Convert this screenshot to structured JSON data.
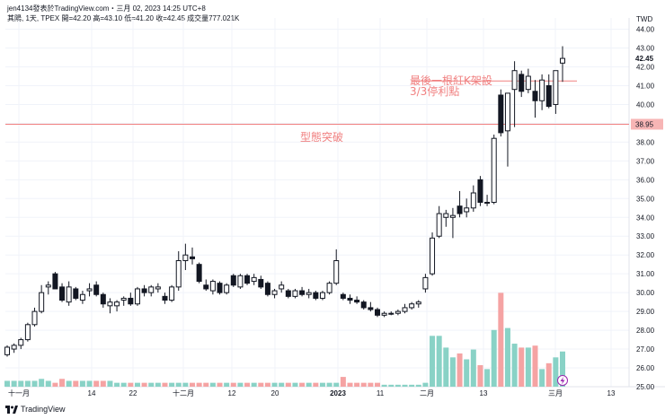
{
  "header": {
    "published": "jen4134發表於TradingView.com・三月 02, 2023 14:25 UTC+8",
    "ohlc": "其陽, 1天, TPEX  開=42.20  高=43.10  低=41.20  收=42.45  成交量777.021K"
  },
  "footer": {
    "brand": "TradingView",
    "logo_icon": "tradingview-logo-icon"
  },
  "alert_icon": "lightning-icon",
  "colors": {
    "up": "#ffffff",
    "down": "#131722",
    "vol_up": "#89d2c6",
    "vol_down": "#f5a3a3",
    "line": "#f08080",
    "grid": "#f0f3fa"
  },
  "chart_data": {
    "type": "candlestick",
    "currency": "TWD",
    "y_range": [
      25.0,
      44.6
    ],
    "y_ticks": [
      "44.00",
      "43.00",
      "42.00",
      "41.00",
      "40.00",
      "39.00",
      "38.00",
      "37.00",
      "36.00",
      "35.00",
      "34.00",
      "33.00",
      "32.00",
      "31.00",
      "30.00",
      "29.00",
      "28.00",
      "27.00",
      "26.00",
      "25.00"
    ],
    "x_ticks": [
      "十一月",
      "14",
      "22",
      "十二月",
      "12",
      "20",
      "2023",
      "11",
      "二月",
      "13",
      "三月",
      "13"
    ],
    "last_price": "42.45",
    "level_price": "38.95",
    "horizontal_lines": [
      {
        "price": 38.95,
        "label": "型態突破"
      },
      {
        "price": 41.25,
        "label": "最後一根紅K架設\n3/3停利點"
      }
    ],
    "annotations": [
      "最後一根紅K架設",
      "3/3停利點",
      "型態突破"
    ],
    "candles": [
      {
        "o": 26.7,
        "h": 27.2,
        "l": 26.6,
        "c": 27.1,
        "v": 0.3,
        "up": true
      },
      {
        "o": 27.0,
        "h": 27.3,
        "l": 26.8,
        "c": 27.2,
        "v": 0.3,
        "up": true
      },
      {
        "o": 27.2,
        "h": 27.6,
        "l": 27.0,
        "c": 27.5,
        "v": 0.3,
        "up": true
      },
      {
        "o": 27.5,
        "h": 28.4,
        "l": 27.4,
        "c": 28.3,
        "v": 0.3,
        "up": true
      },
      {
        "o": 28.3,
        "h": 29.2,
        "l": 28.2,
        "c": 29.0,
        "v": 0.3,
        "up": true
      },
      {
        "o": 29.0,
        "h": 30.4,
        "l": 28.9,
        "c": 30.0,
        "v": 0.4,
        "up": true
      },
      {
        "o": 30.3,
        "h": 30.6,
        "l": 29.9,
        "c": 30.4,
        "v": 0.3,
        "up": true
      },
      {
        "o": 31.0,
        "h": 31.1,
        "l": 30.2,
        "c": 30.2,
        "v": 0.2,
        "up": false
      },
      {
        "o": 30.3,
        "h": 30.5,
        "l": 29.5,
        "c": 29.6,
        "v": 0.4,
        "up": false
      },
      {
        "o": 29.5,
        "h": 30.6,
        "l": 29.3,
        "c": 30.3,
        "v": 0.3,
        "up": true
      },
      {
        "o": 30.2,
        "h": 30.3,
        "l": 29.6,
        "c": 29.7,
        "v": 0.3,
        "up": false
      },
      {
        "o": 29.6,
        "h": 30.1,
        "l": 29.4,
        "c": 29.9,
        "v": 0.3,
        "up": true
      },
      {
        "o": 30.1,
        "h": 30.5,
        "l": 29.8,
        "c": 30.2,
        "v": 0.3,
        "up": true
      },
      {
        "o": 30.4,
        "h": 30.6,
        "l": 29.8,
        "c": 29.9,
        "v": 0.3,
        "up": false
      },
      {
        "o": 29.9,
        "h": 30.0,
        "l": 29.2,
        "c": 29.4,
        "v": 0.3,
        "up": false
      },
      {
        "o": 29.5,
        "h": 29.7,
        "l": 28.9,
        "c": 29.3,
        "v": 0.3,
        "up": true
      },
      {
        "o": 29.3,
        "h": 29.6,
        "l": 29.0,
        "c": 29.5,
        "v": 0.2,
        "up": true
      },
      {
        "o": 29.6,
        "h": 29.8,
        "l": 29.3,
        "c": 29.7,
        "v": 0.2,
        "up": true
      },
      {
        "o": 29.7,
        "h": 30.0,
        "l": 29.3,
        "c": 29.4,
        "v": 0.2,
        "up": false
      },
      {
        "o": 29.4,
        "h": 30.3,
        "l": 29.3,
        "c": 30.2,
        "v": 0.2,
        "up": true
      },
      {
        "o": 30.2,
        "h": 30.4,
        "l": 29.8,
        "c": 30.0,
        "v": 0.2,
        "up": false
      },
      {
        "o": 30.0,
        "h": 30.4,
        "l": 29.8,
        "c": 30.3,
        "v": 0.2,
        "up": true
      },
      {
        "o": 30.2,
        "h": 30.5,
        "l": 30.0,
        "c": 30.3,
        "v": 0.2,
        "up": true
      },
      {
        "o": 29.8,
        "h": 30.0,
        "l": 29.4,
        "c": 29.6,
        "v": 0.2,
        "up": false
      },
      {
        "o": 29.6,
        "h": 30.4,
        "l": 29.5,
        "c": 30.3,
        "v": 0.2,
        "up": true
      },
      {
        "o": 30.3,
        "h": 32.2,
        "l": 30.1,
        "c": 31.7,
        "v": 0.2,
        "up": true
      },
      {
        "o": 31.7,
        "h": 32.6,
        "l": 31.2,
        "c": 32.0,
        "v": 0.2,
        "up": true
      },
      {
        "o": 31.8,
        "h": 32.4,
        "l": 31.5,
        "c": 31.9,
        "v": 0.2,
        "up": false
      },
      {
        "o": 31.5,
        "h": 31.6,
        "l": 30.5,
        "c": 30.6,
        "v": 0.2,
        "up": false
      },
      {
        "o": 30.4,
        "h": 30.7,
        "l": 30.1,
        "c": 30.2,
        "v": 0.2,
        "up": false
      },
      {
        "o": 30.1,
        "h": 30.7,
        "l": 29.9,
        "c": 30.6,
        "v": 0.2,
        "up": true
      },
      {
        "o": 30.5,
        "h": 30.6,
        "l": 29.9,
        "c": 30.0,
        "v": 0.2,
        "up": false
      },
      {
        "o": 30.0,
        "h": 30.5,
        "l": 29.9,
        "c": 30.4,
        "v": 0.2,
        "up": true
      },
      {
        "o": 30.9,
        "h": 31.0,
        "l": 30.3,
        "c": 30.4,
        "v": 0.2,
        "up": false
      },
      {
        "o": 30.3,
        "h": 31.0,
        "l": 30.2,
        "c": 30.9,
        "v": 0.2,
        "up": true
      },
      {
        "o": 30.9,
        "h": 31.0,
        "l": 30.4,
        "c": 30.5,
        "v": 0.2,
        "up": false
      },
      {
        "o": 30.6,
        "h": 31.0,
        "l": 30.4,
        "c": 30.8,
        "v": 0.2,
        "up": true
      },
      {
        "o": 30.7,
        "h": 30.9,
        "l": 30.2,
        "c": 30.3,
        "v": 0.2,
        "up": false
      },
      {
        "o": 30.5,
        "h": 30.6,
        "l": 29.8,
        "c": 29.9,
        "v": 0.2,
        "up": false
      },
      {
        "o": 29.9,
        "h": 30.2,
        "l": 29.7,
        "c": 30.1,
        "v": 0.2,
        "up": true
      },
      {
        "o": 30.2,
        "h": 30.6,
        "l": 30.0,
        "c": 30.4,
        "v": 0.2,
        "up": true
      },
      {
        "o": 30.1,
        "h": 30.2,
        "l": 29.7,
        "c": 29.8,
        "v": 0.2,
        "up": false
      },
      {
        "o": 29.8,
        "h": 30.2,
        "l": 29.7,
        "c": 30.1,
        "v": 0.2,
        "up": true
      },
      {
        "o": 30.1,
        "h": 30.3,
        "l": 29.8,
        "c": 29.9,
        "v": 0.2,
        "up": false
      },
      {
        "o": 29.9,
        "h": 30.2,
        "l": 29.7,
        "c": 30.0,
        "v": 0.2,
        "up": true
      },
      {
        "o": 30.0,
        "h": 30.1,
        "l": 29.6,
        "c": 29.7,
        "v": 0.2,
        "up": false
      },
      {
        "o": 29.7,
        "h": 30.1,
        "l": 29.6,
        "c": 30.0,
        "v": 0.2,
        "up": true
      },
      {
        "o": 30.0,
        "h": 30.6,
        "l": 29.9,
        "c": 30.5,
        "v": 0.2,
        "up": true
      },
      {
        "o": 30.5,
        "h": 32.3,
        "l": 30.4,
        "c": 31.7,
        "v": 0.2,
        "up": true
      },
      {
        "o": 29.9,
        "h": 30.0,
        "l": 29.6,
        "c": 29.7,
        "v": 0.5,
        "up": false
      },
      {
        "o": 29.7,
        "h": 29.9,
        "l": 29.4,
        "c": 29.6,
        "v": 0.2,
        "up": false
      },
      {
        "o": 29.6,
        "h": 29.8,
        "l": 29.4,
        "c": 29.5,
        "v": 0.2,
        "up": false
      },
      {
        "o": 29.5,
        "h": 29.6,
        "l": 29.1,
        "c": 29.2,
        "v": 0.2,
        "up": false
      },
      {
        "o": 29.2,
        "h": 29.5,
        "l": 29.0,
        "c": 29.1,
        "v": 0.2,
        "up": false
      },
      {
        "o": 29.1,
        "h": 29.2,
        "l": 28.7,
        "c": 28.8,
        "v": 0.2,
        "up": false
      },
      {
        "o": 28.8,
        "h": 29.0,
        "l": 28.7,
        "c": 28.9,
        "v": 0.1,
        "up": true
      },
      {
        "o": 28.9,
        "h": 29.0,
        "l": 28.8,
        "c": 28.9,
        "v": 0.1,
        "up": true
      },
      {
        "o": 28.9,
        "h": 29.1,
        "l": 28.8,
        "c": 29.0,
        "v": 0.1,
        "up": true
      },
      {
        "o": 29.0,
        "h": 29.4,
        "l": 28.9,
        "c": 29.2,
        "v": 0.1,
        "up": true
      },
      {
        "o": 29.2,
        "h": 29.5,
        "l": 29.1,
        "c": 29.4,
        "v": 0.1,
        "up": true
      },
      {
        "o": 29.4,
        "h": 29.6,
        "l": 29.2,
        "c": 29.5,
        "v": 0.1,
        "up": true
      },
      {
        "o": 30.2,
        "h": 31.0,
        "l": 30.0,
        "c": 30.8,
        "v": 0.2,
        "up": true
      },
      {
        "o": 31.0,
        "h": 33.2,
        "l": 30.9,
        "c": 32.9,
        "v": 2.6,
        "up": true
      },
      {
        "o": 33.0,
        "h": 34.6,
        "l": 32.9,
        "c": 34.2,
        "v": 2.6,
        "up": true
      },
      {
        "o": 34.2,
        "h": 34.4,
        "l": 33.5,
        "c": 34.0,
        "v": 2.0,
        "up": true
      },
      {
        "o": 34.0,
        "h": 34.5,
        "l": 32.9,
        "c": 34.1,
        "v": 1.5,
        "up": true
      },
      {
        "o": 34.2,
        "h": 35.4,
        "l": 34.0,
        "c": 34.6,
        "v": 1.7,
        "up": false
      },
      {
        "o": 34.5,
        "h": 35.0,
        "l": 34.0,
        "c": 34.3,
        "v": 1.4,
        "up": true
      },
      {
        "o": 34.5,
        "h": 35.7,
        "l": 34.3,
        "c": 35.3,
        "v": 1.9,
        "up": true
      },
      {
        "o": 36.0,
        "h": 36.2,
        "l": 34.6,
        "c": 34.8,
        "v": 1.1,
        "up": false
      },
      {
        "o": 34.8,
        "h": 35.2,
        "l": 34.6,
        "c": 34.8,
        "v": 0.9,
        "up": true
      },
      {
        "o": 34.8,
        "h": 38.4,
        "l": 34.7,
        "c": 38.2,
        "v": 2.9,
        "up": true
      },
      {
        "o": 38.5,
        "h": 40.8,
        "l": 38.3,
        "c": 40.5,
        "v": 4.8,
        "up": false
      },
      {
        "o": 38.6,
        "h": 40.6,
        "l": 36.7,
        "c": 40.6,
        "v": 3.0,
        "up": true
      },
      {
        "o": 40.8,
        "h": 42.3,
        "l": 38.8,
        "c": 41.8,
        "v": 2.2,
        "up": true
      },
      {
        "o": 41.6,
        "h": 41.8,
        "l": 40.4,
        "c": 40.7,
        "v": 2.0,
        "up": false
      },
      {
        "o": 40.8,
        "h": 41.9,
        "l": 40.6,
        "c": 41.5,
        "v": 2.0,
        "up": true
      },
      {
        "o": 40.7,
        "h": 41.3,
        "l": 39.3,
        "c": 40.2,
        "v": 2.1,
        "up": false
      },
      {
        "o": 40.2,
        "h": 41.6,
        "l": 39.7,
        "c": 41.3,
        "v": 0.9,
        "up": true
      },
      {
        "o": 41.0,
        "h": 41.6,
        "l": 39.8,
        "c": 39.9,
        "v": 1.2,
        "up": false
      },
      {
        "o": 40.0,
        "h": 41.8,
        "l": 39.5,
        "c": 41.8,
        "v": 1.5,
        "up": true
      },
      {
        "o": 42.2,
        "h": 43.1,
        "l": 41.2,
        "c": 42.45,
        "v": 1.8,
        "up": true
      }
    ]
  }
}
